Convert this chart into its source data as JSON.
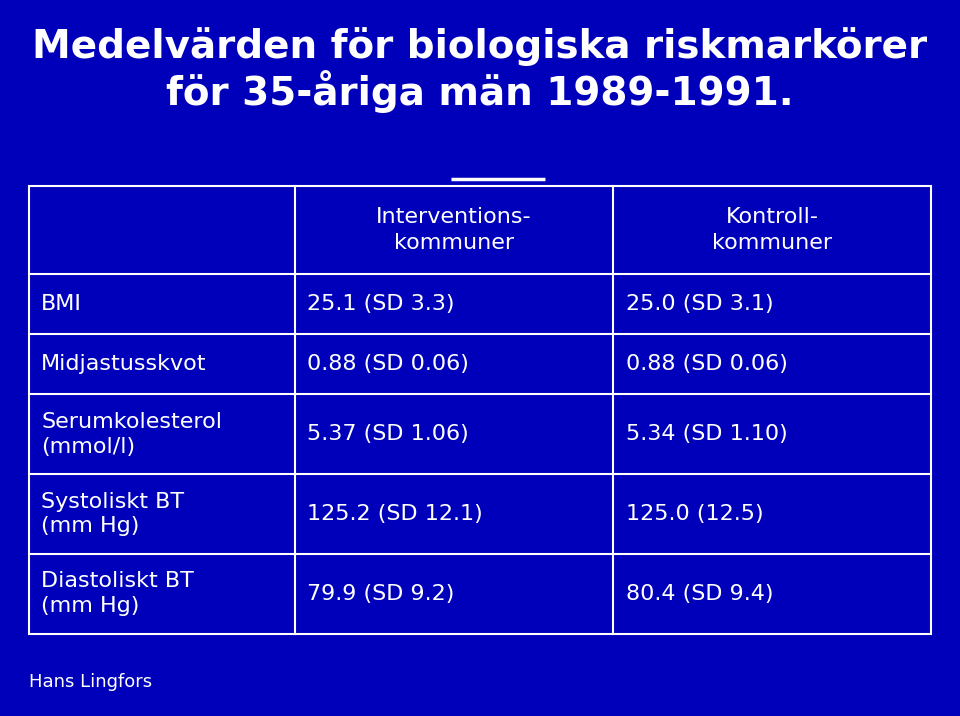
{
  "title_line1": "Medelvärden för biologiska riskmarkörer",
  "title_line2": "för 35-åriga män 1989-1991.",
  "bg_color": "#0000BB",
  "text_color": "#FFFFFF",
  "table_border_color": "#FFFFFF",
  "font_size_title": 28,
  "font_size_table": 16,
  "font_size_footer": 13,
  "footer": "Hans Lingfors",
  "col_headers": [
    "",
    "Interventions-\nkommuner",
    "Kontroll-\nkommuner"
  ],
  "rows": [
    [
      "BMI",
      "25.1 (SD 3.3)",
      "25.0 (SD 3.1)"
    ],
    [
      "Midjastusskvot",
      "0.88 (SD 0.06)",
      "0.88 (SD 0.06)"
    ],
    [
      "Serumkolesterol\n(mmol/l)",
      "5.37 (SD 1.06)",
      "5.34 (SD 1.10)"
    ],
    [
      "Systoliskt BT\n(mm Hg)",
      "125.2 (SD 12.1)",
      "125.0 (12.5)"
    ],
    [
      "Diastoliskt BT\n(mm Hg)",
      "79.9 (SD 9.2)",
      "80.4 (SD 9.4)"
    ]
  ]
}
